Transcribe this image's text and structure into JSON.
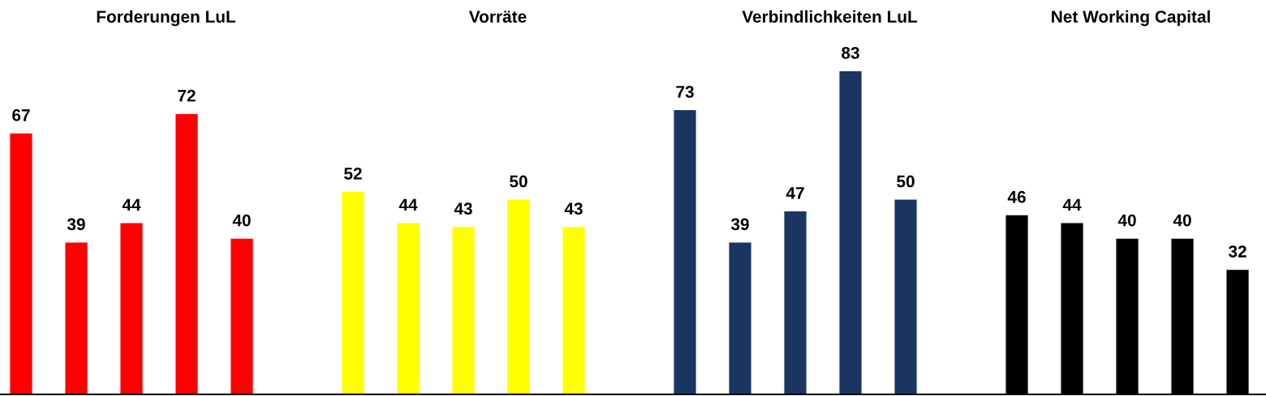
{
  "chart_data": [
    {
      "type": "bar",
      "title": "Forderungen LuL",
      "categories": [
        null,
        null,
        null,
        null,
        null
      ],
      "values": [
        67,
        39,
        44,
        72,
        40
      ],
      "color": "#ff0000",
      "data_labels": true,
      "tick_labels": false
    },
    {
      "type": "bar",
      "title": "Vorräte",
      "categories": [
        null,
        null,
        null,
        null,
        null
      ],
      "values": [
        52,
        44,
        43,
        50,
        43
      ],
      "color": "#ffff00",
      "data_labels": true,
      "tick_labels": false
    },
    {
      "type": "bar",
      "title": "Verbindlichkeiten LuL",
      "categories": [
        null,
        null,
        null,
        null,
        null
      ],
      "values": [
        73,
        39,
        47,
        83,
        50
      ],
      "color": "#1a3660",
      "data_labels": true,
      "tick_labels": false
    },
    {
      "type": "bar",
      "title": "Net Working Capital",
      "categories": [
        null,
        null,
        null,
        null,
        null
      ],
      "values": [
        46,
        44,
        40,
        40,
        32
      ],
      "color": "#000000",
      "data_labels": true,
      "tick_labels": false
    }
  ]
}
